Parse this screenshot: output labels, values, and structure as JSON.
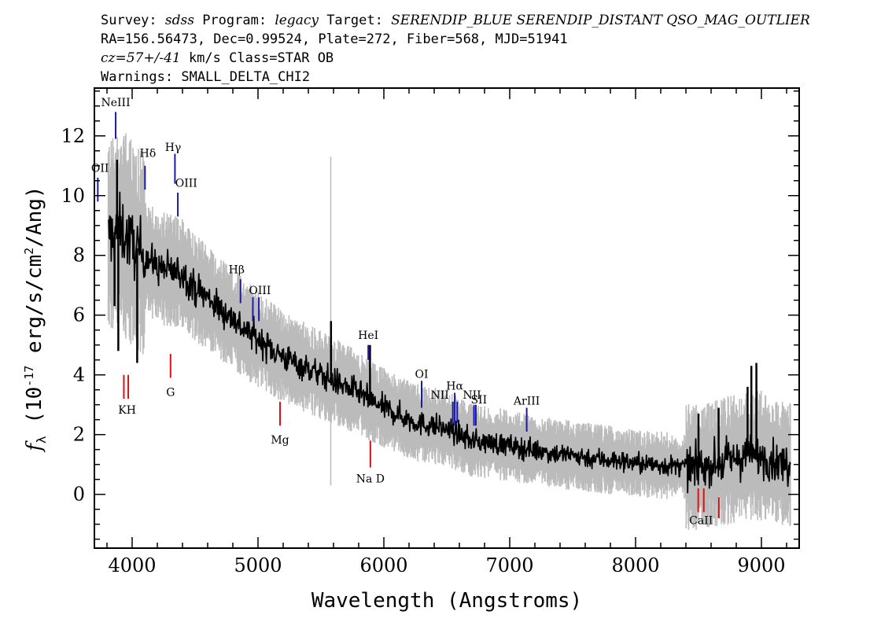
{
  "header": {
    "line1": [
      {
        "text": "Survey: ",
        "italic": false
      },
      {
        "text": "sdss",
        "italic": true
      },
      {
        "text": " Program: ",
        "italic": false
      },
      {
        "text": "legacy",
        "italic": true
      },
      {
        "text": " Target: ",
        "italic": false
      },
      {
        "text": "SERENDIP_BLUE SERENDIP_DISTANT QSO_MAG_OUTLIER",
        "italic": true
      }
    ],
    "line2": "RA=156.56473, Dec=0.99524, Plate=272, Fiber=568, MJD=51941",
    "line3": [
      {
        "text": "cz=57+/-41",
        "italic": true
      },
      {
        "text": " km/s Class=STAR OB",
        "italic": false
      }
    ],
    "line4": "Warnings: SMALL_DELTA_CHI2"
  },
  "chart_data": {
    "type": "line",
    "xlabel": "Wavelength (Angstroms)",
    "ylabel_parts": {
      "f": "f",
      "sub": "λ",
      "pre": " (10",
      "exp1": "-17",
      "mid": " erg/s/cm",
      "exp2": "2",
      "post": "/Ang)"
    },
    "xlim": [
      3700,
      9300
    ],
    "ylim": [
      -1.8,
      13.6
    ],
    "xticks": [
      4000,
      5000,
      6000,
      7000,
      8000,
      9000
    ],
    "yticks": [
      0,
      2,
      4,
      6,
      8,
      10,
      12
    ],
    "colors": {
      "flux": "#000000",
      "noise": "#bbbbbb",
      "emission": "#1a1aaa",
      "absorption": "#dd1111",
      "label_line": "#444444"
    },
    "continuum_anchors": [
      [
        3800,
        8.6
      ],
      [
        3900,
        8.9
      ],
      [
        4000,
        8.4
      ],
      [
        4100,
        8.0
      ],
      [
        4200,
        7.6
      ],
      [
        4300,
        7.5
      ],
      [
        4400,
        7.4
      ],
      [
        4500,
        6.9
      ],
      [
        4600,
        6.6
      ],
      [
        4700,
        6.2
      ],
      [
        4800,
        5.9
      ],
      [
        4900,
        5.5
      ],
      [
        5000,
        5.2
      ],
      [
        5100,
        4.9
      ],
      [
        5200,
        4.6
      ],
      [
        5300,
        4.4
      ],
      [
        5400,
        4.2
      ],
      [
        5500,
        4.0
      ],
      [
        5600,
        3.8
      ],
      [
        5700,
        3.6
      ],
      [
        5800,
        3.4
      ],
      [
        5900,
        3.1
      ],
      [
        6000,
        2.9
      ],
      [
        6100,
        2.7
      ],
      [
        6200,
        2.5
      ],
      [
        6300,
        2.35
      ],
      [
        6400,
        2.3
      ],
      [
        6500,
        2.2
      ],
      [
        6600,
        2.0
      ],
      [
        6700,
        1.8
      ],
      [
        6800,
        1.75
      ],
      [
        6900,
        1.7
      ],
      [
        7000,
        1.62
      ],
      [
        7100,
        1.55
      ],
      [
        7200,
        1.48
      ],
      [
        7300,
        1.42
      ],
      [
        7400,
        1.35
      ],
      [
        7500,
        1.3
      ],
      [
        7600,
        1.25
      ],
      [
        7700,
        1.2
      ],
      [
        7800,
        1.15
      ],
      [
        7900,
        1.1
      ],
      [
        8000,
        1.05
      ],
      [
        8100,
        1.0
      ],
      [
        8200,
        0.98
      ],
      [
        8300,
        0.95
      ],
      [
        8400,
        0.92
      ],
      [
        8500,
        0.9
      ],
      [
        8600,
        1.0
      ],
      [
        8700,
        1.1
      ],
      [
        8800,
        1.2
      ],
      [
        8900,
        1.3
      ],
      [
        9000,
        1.3
      ],
      [
        9100,
        1.1
      ],
      [
        9200,
        1.0
      ]
    ],
    "spikes": [
      {
        "x": 3880,
        "y": 11.2
      },
      {
        "x": 3860,
        "y": 6.3
      },
      {
        "x": 3890,
        "y": 4.8
      },
      {
        "x": 4040,
        "y": 4.4
      },
      {
        "x": 5580,
        "y": 5.8
      },
      {
        "x": 5890,
        "y": 5.0
      },
      {
        "x": 8920,
        "y": 4.3
      },
      {
        "x": 8960,
        "y": 4.4
      },
      {
        "x": 8890,
        "y": 3.6
      },
      {
        "x": 8660,
        "y": 2.9
      },
      {
        "x": 8500,
        "y": 2.7
      }
    ],
    "noise_spikes": [
      {
        "x": 5578,
        "lo": 0.3,
        "hi": 11.3
      }
    ],
    "emission_lines": [
      {
        "label": "NeIII",
        "x": 3869,
        "y1": 11.9,
        "y2": 12.8,
        "lx": 3869,
        "ly": 13.0
      },
      {
        "label": "OII",
        "x": 3727,
        "y1": 9.8,
        "y2": 10.6,
        "lx": 3745,
        "ly": 10.8
      },
      {
        "label": "Hδ",
        "x": 4102,
        "y1": 10.2,
        "y2": 11.0,
        "lx": 4125,
        "ly": 11.3
      },
      {
        "label": "Hγ",
        "x": 4340,
        "y1": 10.4,
        "y2": 11.4,
        "lx": 4325,
        "ly": 11.5
      },
      {
        "label": "OIII",
        "x": 4363,
        "y1": 9.3,
        "y2": 10.1,
        "lx": 4430,
        "ly": 10.3
      },
      {
        "label": "Hβ",
        "x": 4861,
        "y1": 6.4,
        "y2": 7.2,
        "lx": 4830,
        "ly": 7.4
      },
      {
        "label": "OIII",
        "x": 4959,
        "y1": 5.8,
        "y2": 6.6,
        "lx": 5015,
        "ly": 6.7
      },
      {
        "label": "OIII",
        "x": 5007,
        "y1": 5.8,
        "y2": 6.6,
        "lx": null,
        "ly": null
      },
      {
        "label": "HeI",
        "x": 5876,
        "y1": 4.5,
        "y2": 5.0,
        "lx": 5876,
        "ly": 5.2
      },
      {
        "label": "OI",
        "x": 6300,
        "y1": 2.9,
        "y2": 3.8,
        "lx": 6300,
        "ly": 3.9
      },
      {
        "label": "NII",
        "x": 6548,
        "y1": 2.4,
        "y2": 3.1,
        "lx": 6445,
        "ly": 3.2
      },
      {
        "label": "Hα",
        "x": 6563,
        "y1": 2.3,
        "y2": 3.4,
        "lx": 6563,
        "ly": 3.5
      },
      {
        "label": "NII",
        "x": 6583,
        "y1": 2.4,
        "y2": 3.1,
        "lx": 6700,
        "ly": 3.2
      },
      {
        "label": "SII",
        "x": 6716,
        "y1": 2.3,
        "y2": 3.0,
        "lx": 6755,
        "ly": 3.05
      },
      {
        "label": "SII",
        "x": 6731,
        "y1": 2.3,
        "y2": 3.0,
        "lx": null,
        "ly": null
      },
      {
        "label": "ArIII",
        "x": 7135,
        "y1": 2.1,
        "y2": 2.9,
        "lx": 7135,
        "ly": 3.0
      }
    ],
    "absorption_lines": [
      {
        "label": "K",
        "x": 3934,
        "y1": 3.2,
        "y2": 4.0
      },
      {
        "label": "H",
        "x": 3969,
        "y1": 3.2,
        "y2": 4.0
      },
      {
        "label": "KH",
        "lx": 3960,
        "ly": 2.7
      },
      {
        "label": "G",
        "x": 4305,
        "y1": 3.9,
        "y2": 4.7,
        "lx": 4305,
        "ly": 3.3
      },
      {
        "label": "Mg",
        "x": 5175,
        "y1": 2.3,
        "y2": 3.1,
        "lx": 5175,
        "ly": 1.7
      },
      {
        "label": "Na D",
        "x": 5893,
        "y1": 0.9,
        "y2": 1.8,
        "lx": 5893,
        "ly": 0.4
      },
      {
        "label": "CaII",
        "x": 8498,
        "y1": -0.6,
        "y2": 0.2
      },
      {
        "label": "CaII",
        "x": 8542,
        "y1": -0.6,
        "y2": 0.2
      },
      {
        "label": "CaII",
        "x": 8662,
        "y1": -0.8,
        "y2": -0.1,
        "lx": 8520,
        "ly": -1.0
      }
    ]
  }
}
